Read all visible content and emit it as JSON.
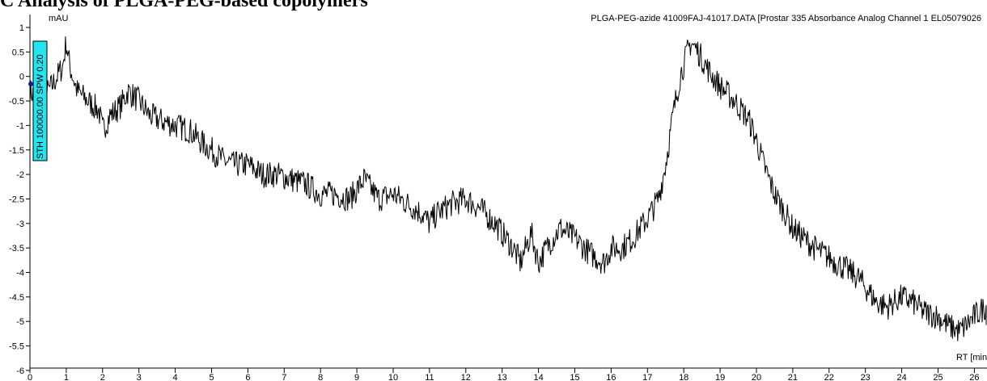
{
  "page": {
    "title_fragment": "C Analysis of PLGA-PEG-based copolymers"
  },
  "chart_data": {
    "type": "line",
    "title": "PLGA-PEG-azide 41009FAJ-41017.DATA [Prostar 335 Absorbance Analog Channel 1 EL05079026",
    "ylabel": "mAU",
    "xlabel": "RT [min]",
    "xlim": [
      0,
      26.5
    ],
    "ylim": [
      -6,
      1.15
    ],
    "x_ticks": [
      0,
      1,
      2,
      3,
      4,
      5,
      6,
      7,
      8,
      9,
      10,
      11,
      12,
      13,
      14,
      15,
      16,
      17,
      18,
      19,
      20,
      21,
      22,
      23,
      24,
      25,
      26
    ],
    "y_ticks": [
      1,
      0.5,
      0,
      -0.5,
      -1,
      -1.5,
      -2,
      -2.5,
      -3,
      -3.5,
      -4,
      -4.5,
      -5,
      -5.5,
      -6
    ],
    "grid": false,
    "series": [
      {
        "color": "#000000",
        "x": [
          0,
          0.3,
          0.6,
          0.9,
          1.0,
          1.1,
          1.3,
          1.6,
          1.9,
          2.0,
          2.2,
          2.5,
          2.7,
          3.0,
          3.3,
          3.6,
          4.0,
          4.4,
          4.8,
          5.0,
          5.3,
          5.6,
          6.0,
          6.4,
          6.8,
          7.2,
          7.6,
          8.0,
          8.4,
          8.8,
          9.2,
          9.6,
          10.0,
          10.4,
          10.8,
          11.0,
          11.2,
          11.6,
          12.0,
          12.4,
          12.8,
          13.0,
          13.3,
          13.5,
          13.8,
          14.0,
          14.3,
          14.6,
          15.0,
          15.4,
          15.8,
          16.0,
          16.3,
          16.6,
          17.0,
          17.3,
          17.5,
          17.7,
          17.9,
          18.1,
          18.2,
          18.4,
          18.7,
          19.0,
          19.4,
          19.8,
          20.0,
          20.2,
          20.5,
          20.8,
          21.0,
          21.3,
          21.6,
          22.0,
          22.4,
          22.8,
          23.0,
          23.3,
          23.6,
          24.0,
          24.3,
          24.6,
          25.0,
          25.3,
          25.6,
          26.0,
          26.3,
          26.5
        ],
        "y": [
          -0.3,
          -0.5,
          -0.2,
          0.2,
          0.7,
          0.2,
          -0.3,
          -0.5,
          -0.7,
          -1.1,
          -0.8,
          -0.6,
          -0.3,
          -0.5,
          -0.8,
          -0.9,
          -1.0,
          -1.1,
          -1.4,
          -1.5,
          -1.7,
          -1.8,
          -1.8,
          -2.0,
          -2.0,
          -2.1,
          -2.2,
          -2.4,
          -2.4,
          -2.5,
          -2.1,
          -2.5,
          -2.4,
          -2.6,
          -2.8,
          -3.0,
          -2.8,
          -2.6,
          -2.5,
          -2.7,
          -3.0,
          -3.2,
          -3.5,
          -3.8,
          -3.2,
          -3.8,
          -3.4,
          -3.1,
          -3.3,
          -3.6,
          -3.8,
          -3.5,
          -3.5,
          -3.3,
          -2.9,
          -2.5,
          -1.8,
          -0.8,
          0.0,
          0.5,
          0.7,
          0.5,
          0.1,
          -0.2,
          -0.5,
          -0.9,
          -1.3,
          -1.8,
          -2.4,
          -2.8,
          -3.1,
          -3.3,
          -3.5,
          -3.7,
          -3.9,
          -4.1,
          -4.3,
          -4.6,
          -4.7,
          -4.5,
          -4.6,
          -4.8,
          -4.9,
          -5.1,
          -5.2,
          -4.9,
          -4.7,
          -4.8
        ]
      }
    ],
    "annotation": {
      "text": "STH 100000.00 SPW 0.20",
      "background": "#22e5f0"
    }
  }
}
